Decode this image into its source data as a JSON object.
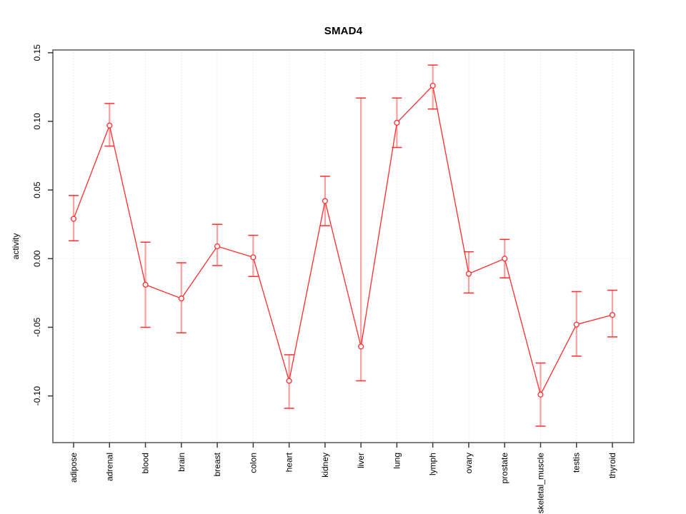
{
  "title": "SMAD4",
  "chart_data": {
    "type": "line",
    "title": "SMAD4",
    "xlabel": "",
    "ylabel": "activity",
    "categories": [
      "adipose",
      "adrenal",
      "blood",
      "brain",
      "breast",
      "colon",
      "heart",
      "kidney",
      "liver",
      "lung",
      "lymph",
      "ovary",
      "prostate",
      "skeletal_muscle",
      "testis",
      "thyroid"
    ],
    "series": [
      {
        "name": "activity",
        "values": [
          0.029,
          0.097,
          -0.019,
          -0.029,
          0.009,
          0.001,
          -0.089,
          0.042,
          -0.064,
          0.099,
          0.126,
          -0.011,
          0.0,
          -0.099,
          -0.048,
          -0.041
        ],
        "error_low": [
          0.013,
          0.082,
          -0.05,
          -0.054,
          -0.005,
          -0.013,
          -0.109,
          0.024,
          -0.089,
          0.081,
          0.109,
          -0.025,
          -0.014,
          -0.122,
          -0.071,
          -0.057
        ],
        "error_high": [
          0.046,
          0.113,
          0.012,
          -0.003,
          0.025,
          0.017,
          -0.07,
          0.06,
          0.117,
          0.117,
          0.141,
          0.005,
          0.014,
          -0.076,
          -0.024,
          -0.023
        ]
      }
    ],
    "yticks": [
      "0.15",
      "0.10",
      "0.05",
      "0.00",
      "-0.05",
      "-0.10"
    ],
    "ytick_values": [
      0.15,
      0.1,
      0.05,
      0.0,
      -0.05,
      -0.1
    ],
    "ylim": [
      -0.134,
      0.152
    ],
    "grid": "vertical dotted gridline at each category; horizontal dotted line at 0",
    "legend_position": "none",
    "marker": "open-circle",
    "colors": {
      "line": "#ff2d2d",
      "marker": "#ff2d2d",
      "error_cap": "#ff2d2d",
      "error_bar": "#ffa0a0",
      "gridline": "#d9d9d9",
      "zero_line": "#e2e2e2",
      "box": "#7f7f7f",
      "tick": "#3a3a3a",
      "text": "#000000",
      "background": "#ffffff"
    }
  }
}
